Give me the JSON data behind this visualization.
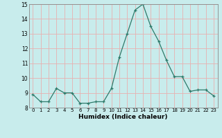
{
  "x": [
    0,
    1,
    2,
    3,
    4,
    5,
    6,
    7,
    8,
    9,
    10,
    11,
    12,
    13,
    14,
    15,
    16,
    17,
    18,
    19,
    20,
    21,
    22,
    23
  ],
  "y": [
    8.9,
    8.4,
    8.4,
    9.3,
    9.0,
    9.0,
    8.3,
    8.3,
    8.4,
    8.4,
    9.3,
    11.4,
    13.0,
    14.6,
    15.0,
    13.5,
    12.5,
    11.2,
    10.1,
    10.1,
    9.1,
    9.2,
    9.2,
    8.8
  ],
  "xlabel": "Humidex (Indice chaleur)",
  "ylim": [
    8,
    15
  ],
  "xlim": [
    -0.5,
    23.5
  ],
  "yticks": [
    8,
    9,
    10,
    11,
    12,
    13,
    14,
    15
  ],
  "xticks": [
    0,
    1,
    2,
    3,
    4,
    5,
    6,
    7,
    8,
    9,
    10,
    11,
    12,
    13,
    14,
    15,
    16,
    17,
    18,
    19,
    20,
    21,
    22,
    23
  ],
  "line_color": "#2d7a6a",
  "marker": "+",
  "bg_color": "#c8ecec",
  "grid_color_h": "#e8b0b0",
  "grid_color_v": "#e8b0b0"
}
